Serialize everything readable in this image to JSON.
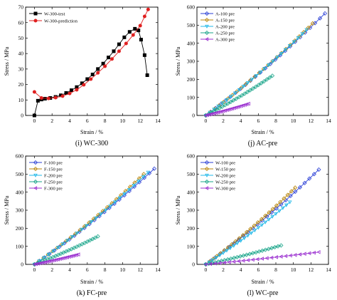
{
  "chart_data": [
    {
      "type": "line",
      "caption": "(i) WC-300",
      "xlabel": "Strain / %",
      "ylabel": "Stress / MPa",
      "xlim": [
        -1,
        14
      ],
      "ylim": [
        0,
        70
      ],
      "xticks": [
        0,
        2,
        4,
        6,
        8,
        10,
        12,
        14
      ],
      "yticks": [
        0,
        10,
        20,
        30,
        40,
        50,
        60,
        70
      ],
      "legend_position": "top-left",
      "series": [
        {
          "name": "W-300-test",
          "color": "#000000",
          "marker": "square",
          "x": [
            0,
            0.4,
            0.8,
            1.2,
            1.8,
            2.4,
            3.0,
            3.6,
            4.2,
            4.8,
            5.4,
            6.0,
            6.6,
            7.2,
            7.8,
            8.4,
            9.0,
            9.6,
            10.2,
            10.8,
            11.4,
            11.8,
            12.1,
            12.5,
            12.8
          ],
          "y": [
            0,
            9.5,
            10.3,
            10.8,
            11.3,
            12.0,
            13.0,
            14.5,
            16.3,
            18.3,
            20.8,
            23.5,
            26.5,
            30.0,
            33.5,
            37.5,
            41.5,
            46.0,
            50.5,
            54.0,
            56.0,
            55.0,
            49.0,
            39.0,
            26.0
          ]
        },
        {
          "name": "W-300-prediction",
          "color": "#e02020",
          "marker": "circle",
          "x": [
            0,
            0.8,
            1.6,
            2.4,
            3.2,
            4.0,
            4.8,
            5.6,
            6.4,
            7.2,
            8.0,
            8.8,
            9.6,
            10.4,
            11.2,
            12.0,
            12.5,
            12.9
          ],
          "y": [
            15.2,
            11.3,
            11.0,
            11.5,
            12.5,
            14.2,
            16.6,
            19.8,
            23.5,
            27.5,
            31.8,
            36.5,
            41.5,
            46.5,
            52.0,
            58.0,
            64.0,
            68.5
          ]
        }
      ]
    },
    {
      "type": "line",
      "caption": "(j) AC-pre",
      "xlabel": "Strain / %",
      "ylabel": "Stress / MPa",
      "xlim": [
        -1,
        14
      ],
      "ylim": [
        0,
        600
      ],
      "xticks": [
        0,
        2,
        4,
        6,
        8,
        10,
        12,
        14
      ],
      "yticks": [
        0,
        100,
        200,
        300,
        400,
        500,
        600
      ],
      "legend_position": "top-left",
      "series": [
        {
          "name": "A-100 pre",
          "color": "#2a3fd6",
          "marker": "diamond",
          "x_end": 13.6,
          "y_end": 565
        },
        {
          "name": "A-150 pre",
          "color": "#b8860b",
          "marker": "diamond",
          "x_end": 12.2,
          "y_end": 510
        },
        {
          "name": "A-200 pre",
          "color": "#1fb8e8",
          "marker": "triangle-down",
          "x_end": 11.5,
          "y_end": 475
        },
        {
          "name": "A-250 pre",
          "color": "#1aa58a",
          "marker": "diamond",
          "x_end": 7.6,
          "y_end": 220
        },
        {
          "name": "A-300 pre",
          "color": "#9b30d0",
          "marker": "triangle-left",
          "x_end": 4.9,
          "y_end": 65
        }
      ]
    },
    {
      "type": "line",
      "caption": "(k) FC-pre",
      "xlabel": "Strain / %",
      "ylabel": "Stress / MPa",
      "xlim": [
        -1,
        14
      ],
      "ylim": [
        0,
        600
      ],
      "xticks": [
        0,
        2,
        4,
        6,
        8,
        10,
        12,
        14
      ],
      "yticks": [
        0,
        100,
        200,
        300,
        400,
        500,
        600
      ],
      "legend_position": "top-left",
      "series": [
        {
          "name": "F-100 pre",
          "color": "#2a3fd6",
          "marker": "diamond",
          "x_end": 13.6,
          "y_end": 530
        },
        {
          "name": "F-150 pre",
          "color": "#b8860b",
          "marker": "diamond",
          "x_end": 12.4,
          "y_end": 500
        },
        {
          "name": "F-200 pre",
          "color": "#1fb8e8",
          "marker": "triangle-down",
          "x_end": 12.9,
          "y_end": 510
        },
        {
          "name": "F-250 pre",
          "color": "#1aa58a",
          "marker": "diamond",
          "x_end": 7.2,
          "y_end": 155
        },
        {
          "name": "F-300 pre",
          "color": "#9b30d0",
          "marker": "triangle-left",
          "x_end": 5.0,
          "y_end": 55
        }
      ]
    },
    {
      "type": "line",
      "caption": "(l) WC-pre",
      "xlabel": "Strain / %",
      "ylabel": "Stress / MPa",
      "xlim": [
        -1,
        14
      ],
      "ylim": [
        0,
        600
      ],
      "xticks": [
        0,
        2,
        4,
        6,
        8,
        10,
        12,
        14
      ],
      "yticks": [
        0,
        100,
        200,
        300,
        400,
        500,
        600
      ],
      "legend_position": "top-left",
      "series": [
        {
          "name": "W-100 pre",
          "color": "#2a3fd6",
          "marker": "diamond",
          "x_end": 12.9,
          "y_end": 525
        },
        {
          "name": "W-150 pre",
          "color": "#b8860b",
          "marker": "diamond",
          "x_end": 10.2,
          "y_end": 425
        },
        {
          "name": "W-200 pre",
          "color": "#1fb8e8",
          "marker": "triangle-down",
          "x_end": 9.6,
          "y_end": 345
        },
        {
          "name": "W-250 pre",
          "color": "#1aa58a",
          "marker": "diamond",
          "x_end": 8.6,
          "y_end": 105
        },
        {
          "name": "W-300 pre",
          "color": "#9b30d0",
          "marker": "triangle-left",
          "x_end": 12.9,
          "y_end": 68
        }
      ]
    }
  ]
}
